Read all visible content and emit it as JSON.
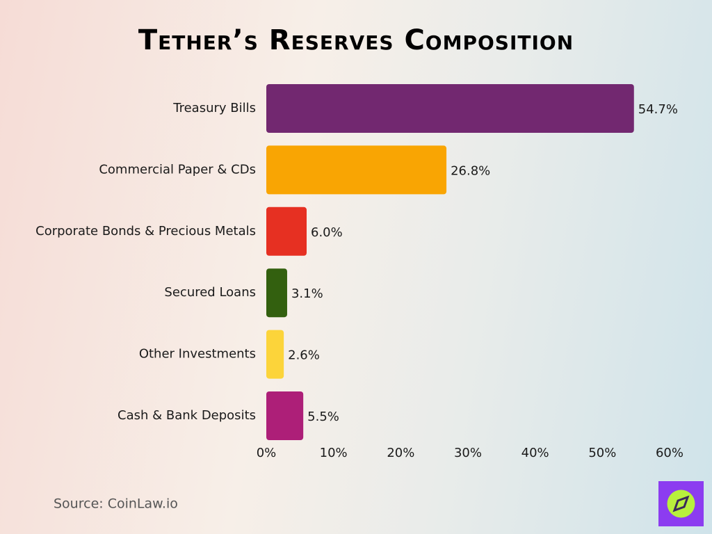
{
  "chart_data": {
    "type": "bar",
    "orientation": "horizontal",
    "title": "Tether’s Reserves Composition",
    "categories": [
      "Treasury Bills",
      "Commercial Paper & CDs",
      "Corporate Bonds & Precious Metals",
      "Secured Loans",
      "Other Investments",
      "Cash & Bank Deposits"
    ],
    "values": [
      54.7,
      26.8,
      6.0,
      3.1,
      2.6,
      5.5
    ],
    "value_labels": [
      "54.7%",
      "26.8%",
      "6.0%",
      "3.1%",
      "2.6%",
      "5.5%"
    ],
    "colors": [
      "#722870",
      "#f9a503",
      "#e63022",
      "#33600f",
      "#fcd43a",
      "#ad1f78"
    ],
    "xlim": [
      0,
      60
    ],
    "xticks": [
      {
        "value": 0,
        "label": "0%"
      },
      {
        "value": 10,
        "label": "10%"
      },
      {
        "value": 20,
        "label": "20%"
      },
      {
        "value": 30,
        "label": "30%"
      },
      {
        "value": 40,
        "label": "40%"
      },
      {
        "value": 50,
        "label": "50%"
      },
      {
        "value": 60,
        "label": "60%"
      }
    ],
    "grid": false,
    "source": "Source: CoinLaw.io"
  }
}
